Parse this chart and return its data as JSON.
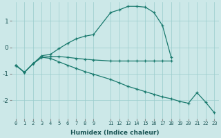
{
  "xlabel": "Humidex (Indice chaleur)",
  "bg_color": "#cce8e8",
  "grid_color": "#99cccc",
  "line_color": "#1a7a6e",
  "xlim": [
    -0.5,
    23.5
  ],
  "ylim": [
    -2.7,
    1.7
  ],
  "xticks": [
    0,
    1,
    2,
    3,
    4,
    5,
    6,
    7,
    8,
    9,
    11,
    12,
    13,
    14,
    15,
    16,
    17,
    18,
    19,
    20,
    21,
    22,
    23
  ],
  "yticks": [
    -2,
    -1,
    0,
    1
  ],
  "line1_x": [
    0,
    1,
    2,
    3,
    4,
    5,
    6,
    7,
    8,
    9,
    11,
    12,
    13,
    14,
    15,
    16,
    17,
    18
  ],
  "line1_y": [
    -0.68,
    -0.95,
    -0.62,
    -0.32,
    -0.27,
    -0.05,
    0.15,
    0.32,
    0.42,
    0.48,
    1.32,
    1.42,
    1.55,
    1.55,
    1.52,
    1.32,
    0.82,
    -0.38
  ],
  "line2_x": [
    0,
    1,
    2,
    3,
    4,
    5,
    6,
    7,
    8,
    9,
    11,
    12,
    13,
    14,
    15,
    16,
    17,
    18
  ],
  "line2_y": [
    -0.68,
    -0.95,
    -0.62,
    -0.38,
    -0.35,
    -0.35,
    -0.38,
    -0.42,
    -0.45,
    -0.48,
    -0.52,
    -0.52,
    -0.52,
    -0.52,
    -0.52,
    -0.52,
    -0.52,
    -0.52
  ],
  "line3_x": [
    0,
    1,
    2,
    3,
    4,
    5,
    6,
    7,
    8,
    9,
    11,
    12,
    13,
    14,
    15,
    16,
    17,
    18,
    19,
    20,
    21,
    22,
    23
  ],
  "line3_y": [
    -0.68,
    -0.95,
    -0.62,
    -0.38,
    -0.42,
    -0.55,
    -0.68,
    -0.8,
    -0.92,
    -1.02,
    -1.22,
    -1.35,
    -1.48,
    -1.58,
    -1.68,
    -1.78,
    -1.88,
    -1.95,
    -2.05,
    -2.12,
    -1.72,
    -2.08,
    -2.48
  ]
}
